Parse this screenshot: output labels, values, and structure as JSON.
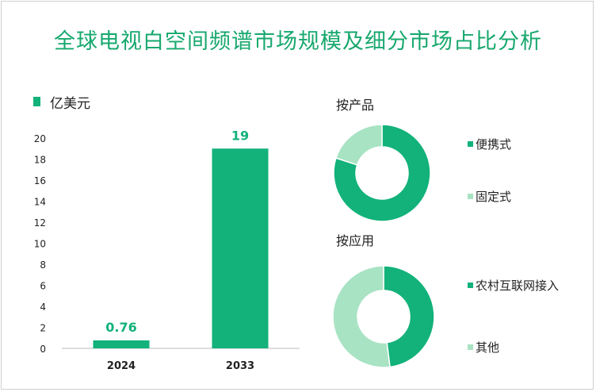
{
  "title": "全球电视白空间频谱市场规模及细分市场占比分析",
  "colors": {
    "primary": "#12b27a",
    "secondary": "#a8e3c4",
    "title": "#17a86e"
  },
  "chart_data": [
    {
      "type": "bar",
      "legend": "亿美元",
      "categories": [
        "2024",
        "2033"
      ],
      "values": [
        0.76,
        19
      ],
      "value_labels": [
        "0.76",
        "19"
      ],
      "ylim": [
        0,
        20
      ],
      "yticks": [
        "0",
        "2",
        "4",
        "6",
        "8",
        "10",
        "12",
        "14",
        "16",
        "18",
        "20"
      ]
    },
    {
      "type": "pie",
      "title": "按产品",
      "labels": [
        "便携式",
        "固定式"
      ],
      "values": [
        80,
        20
      ]
    },
    {
      "type": "pie",
      "title": "按应用",
      "labels": [
        "农村互联网接入",
        "其他"
      ],
      "values": [
        48,
        52
      ]
    }
  ]
}
